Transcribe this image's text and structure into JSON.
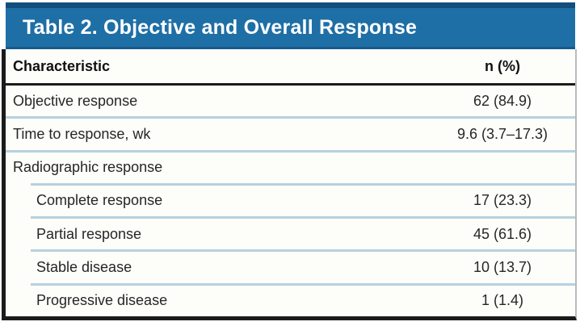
{
  "table": {
    "title": "Table 2. Objective and Overall Response",
    "columns": {
      "characteristic": "Characteristic",
      "value": "n (%)"
    },
    "rows": [
      {
        "label": "Objective response",
        "value": "62 (84.9)",
        "indent": false
      },
      {
        "label": "Time to response, wk",
        "value": "9.6 (3.7–17.3)",
        "indent": false
      },
      {
        "label": "Radiographic response",
        "value": "",
        "indent": false
      },
      {
        "label": "Complete response",
        "value": "17 (23.3)",
        "indent": true
      },
      {
        "label": "Partial response",
        "value": "45 (61.6)",
        "indent": true
      },
      {
        "label": "Stable disease",
        "value": "10 (13.7)",
        "indent": true
      },
      {
        "label": "Progressive disease",
        "value": "1 (1.4)",
        "indent": true
      }
    ],
    "colors": {
      "header_bg": "#1e6fa6",
      "header_bg_dark": "#124e7c",
      "separator": "#b6d1e1",
      "border_dark": "#1b1b1b"
    }
  }
}
